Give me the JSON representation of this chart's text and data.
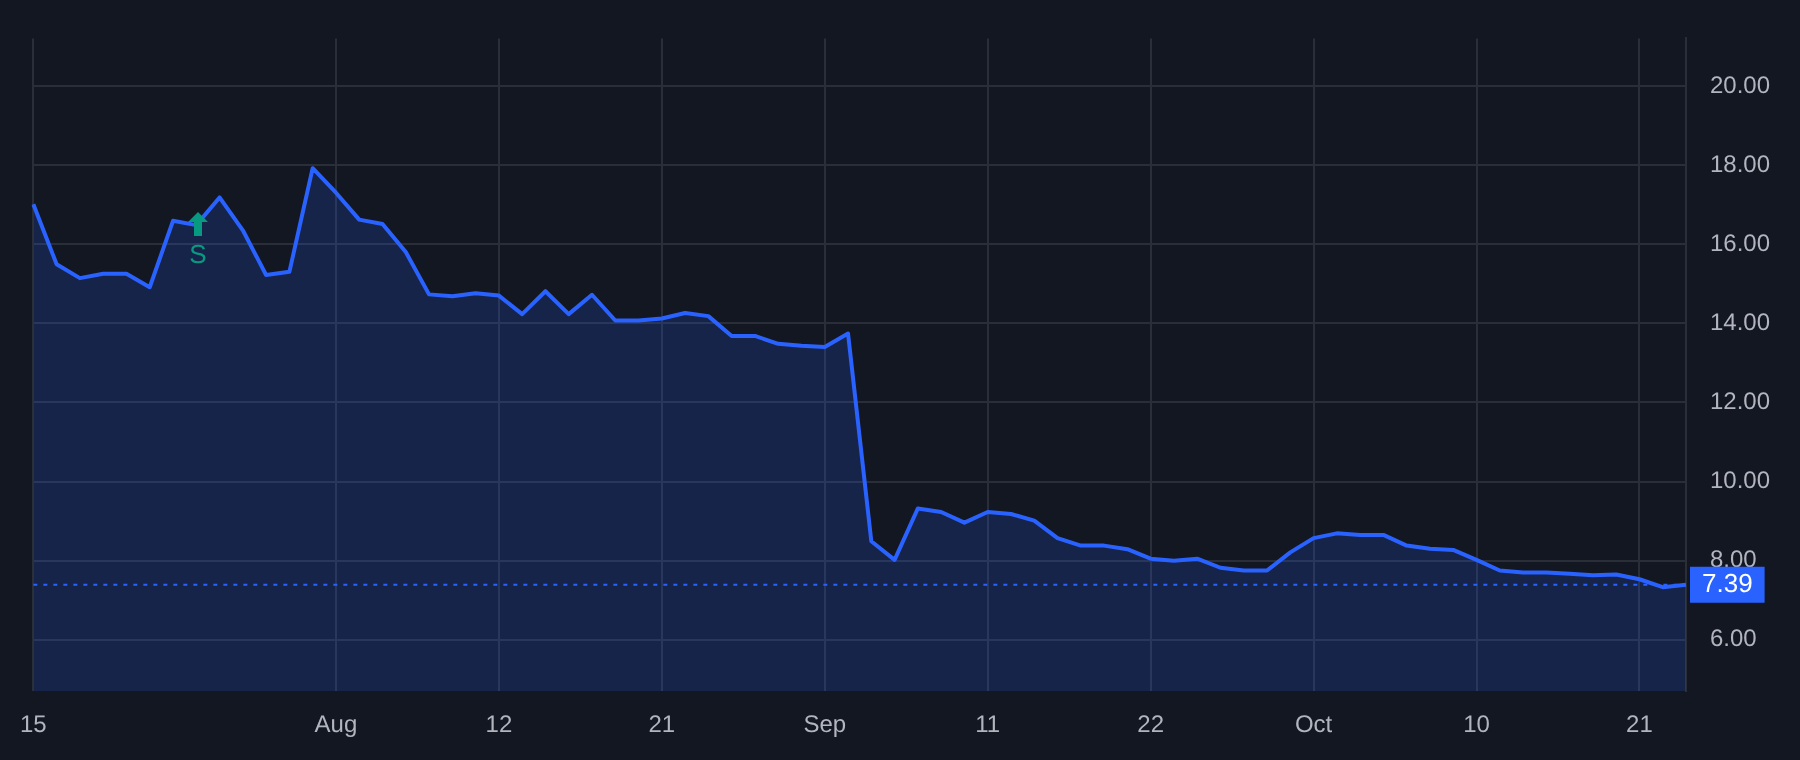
{
  "chart_data": {
    "type": "area",
    "categories": [
      "15",
      null,
      null,
      null,
      null,
      null,
      null,
      null,
      null,
      null,
      null,
      null,
      null,
      "Aug",
      null,
      null,
      null,
      null,
      null,
      null,
      "12",
      null,
      null,
      null,
      null,
      null,
      null,
      "21",
      null,
      null,
      null,
      null,
      null,
      null,
      "Sep",
      null,
      null,
      null,
      null,
      null,
      null,
      "11",
      null,
      null,
      null,
      null,
      null,
      null,
      "22",
      null,
      null,
      null,
      null,
      null,
      null,
      "Oct",
      null,
      null,
      null,
      null,
      null,
      null,
      "10",
      null,
      null,
      null,
      null,
      null,
      null,
      "21",
      null,
      null
    ],
    "series": [
      {
        "color": "#2962ff",
        "values": [
          17.01,
          15.49,
          15.14,
          15.25,
          15.25,
          14.91,
          16.59,
          16.48,
          17.18,
          16.35,
          15.22,
          15.3,
          17.92,
          17.3,
          16.62,
          16.51,
          15.8,
          14.73,
          14.68,
          14.76,
          14.7,
          14.23,
          14.81,
          14.23,
          14.72,
          14.07,
          14.07,
          14.12,
          14.26,
          14.18,
          13.68,
          13.68,
          13.48,
          13.43,
          13.4,
          13.74,
          8.49,
          8.02,
          9.32,
          9.23,
          8.96,
          9.23,
          9.18,
          9.01,
          8.57,
          8.38,
          8.38,
          8.29,
          8.05,
          8.0,
          8.05,
          7.82,
          7.75,
          7.75,
          8.21,
          8.57,
          8.69,
          8.65,
          8.65,
          8.38,
          8.3,
          8.27,
          8.02,
          7.75,
          7.7,
          7.7,
          7.67,
          7.63,
          7.65,
          7.53,
          7.33,
          7.39
        ]
      }
    ],
    "ylim": [
      4.7,
      21.2
    ],
    "yticks": [
      {
        "value": 6,
        "label": "6.00"
      },
      {
        "value": 8,
        "label": "8.00"
      },
      {
        "value": 10,
        "label": "10.00"
      },
      {
        "value": 12,
        "label": "12.00"
      },
      {
        "value": 14,
        "label": "14.00"
      },
      {
        "value": 16,
        "label": "16.00"
      },
      {
        "value": 18,
        "label": "18.00"
      },
      {
        "value": 20,
        "label": "20.00"
      }
    ],
    "ref_lines": [
      {
        "axis": "y",
        "value": 7.39,
        "label": "7.39",
        "color": "#2962ff",
        "line_style": "dotted"
      }
    ],
    "annotations": [
      "S"
    ],
    "grid": true,
    "legend": false,
    "marker": "none",
    "line_style": "solid"
  }
}
